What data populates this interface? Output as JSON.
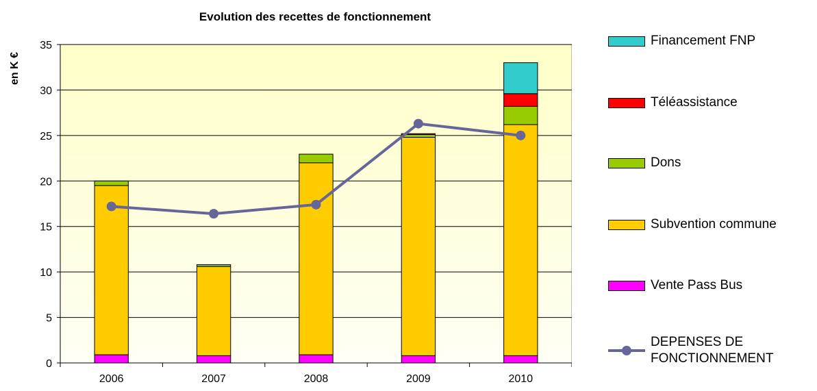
{
  "chart_data": {
    "type": "bar",
    "stacked": true,
    "title": "Evolution des recettes de fonctionnement",
    "y_label": "en K €",
    "categories": [
      "2006",
      "2007",
      "2008",
      "2009",
      "2010"
    ],
    "ylim": [
      0,
      35
    ],
    "yticks": [
      0,
      5,
      10,
      15,
      20,
      25,
      30,
      35
    ],
    "grid": true,
    "legend": "right",
    "series": [
      {
        "name": "Vente Pass Bus",
        "color": "#ff00ff",
        "values": [
          0.9,
          0.8,
          0.9,
          0.8,
          0.8
        ]
      },
      {
        "name": "Subvention commune",
        "color": "#ffcc00",
        "values": [
          18.6,
          9.8,
          21.1,
          24.0,
          25.4
        ]
      },
      {
        "name": "Dons",
        "color": "#99cc00",
        "values": [
          0.5,
          0.2,
          0.95,
          0.3,
          2.0
        ]
      },
      {
        "name": "Téléassistance",
        "color": "#ff0000",
        "values": [
          0,
          0,
          0,
          0.1,
          1.4
        ]
      },
      {
        "name": "Financement FNP",
        "color": "#33cccc",
        "values": [
          0,
          0,
          0,
          0,
          3.4
        ]
      },
      {
        "name": "DEPENSES DE FONCTIONNEMENT",
        "color": "#666699",
        "type": "line",
        "values": [
          17.2,
          16.4,
          17.4,
          26.3,
          25.0
        ]
      }
    ]
  }
}
